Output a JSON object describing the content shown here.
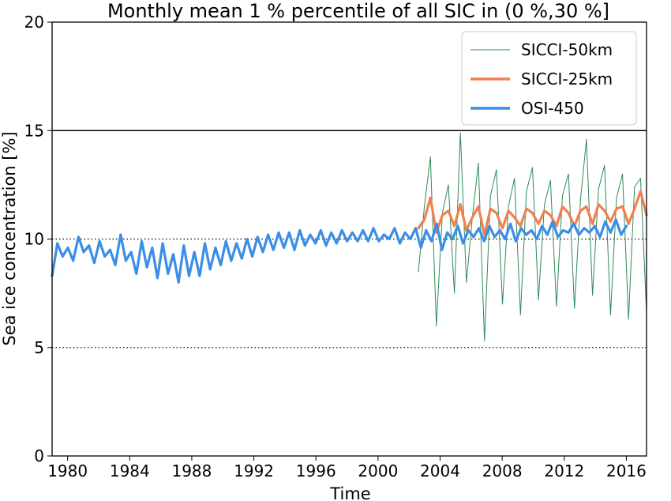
{
  "chart_data": {
    "type": "line",
    "title": "Monthly mean 1 % percentile of all SIC in (0 %,30 %]",
    "xlabel": "Time",
    "ylabel": "Sea ice concentration [%]",
    "xlim": [
      1979.0,
      2017.3
    ],
    "ylim": [
      0,
      20
    ],
    "xticks": [
      "1980",
      "1984",
      "1988",
      "1992",
      "1996",
      "2000",
      "2004",
      "2008",
      "2012",
      "2016"
    ],
    "yticks": [
      "0",
      "5",
      "10",
      "15",
      "20"
    ],
    "grid": false,
    "legend_position": "top-right",
    "reference_lines": [
      {
        "y": 15,
        "style": "solid"
      },
      {
        "y": 10,
        "style": "dotted"
      },
      {
        "y": 5,
        "style": "dotted"
      }
    ],
    "series": [
      {
        "name": "SICCI-50km",
        "color": "#2e8b57",
        "style": "thin",
        "x_start": 2002.6,
        "x_end": 2017.3,
        "values": [
          8.5,
          11.5,
          13.8,
          6.0,
          11.2,
          12.5,
          7.5,
          14.9,
          8.0,
          11.0,
          13.5,
          5.3,
          12.0,
          13.2,
          7.0,
          11.5,
          12.8,
          6.5,
          12.2,
          13.3,
          7.2,
          11.6,
          12.7,
          6.9,
          12.0,
          13.0,
          6.8,
          11.8,
          14.6,
          7.4,
          12.3,
          13.4,
          6.5,
          11.9,
          13.0,
          6.3,
          12.4,
          12.8,
          6.6
        ]
      },
      {
        "name": "SICCI-25km",
        "color": "#f08050",
        "style": "thick",
        "x_start": 2002.6,
        "x_end": 2017.3,
        "values": [
          10.5,
          10.9,
          11.9,
          10.3,
          11.1,
          11.3,
          10.6,
          11.6,
          10.4,
          11.0,
          11.5,
          10.2,
          11.4,
          11.2,
          10.5,
          11.3,
          11.0,
          10.6,
          11.4,
          11.2,
          10.7,
          11.3,
          11.1,
          10.6,
          11.5,
          11.2,
          10.6,
          11.3,
          11.5,
          10.7,
          11.6,
          11.3,
          10.8,
          11.4,
          11.5,
          10.7,
          11.4,
          12.2,
          11.1
        ]
      },
      {
        "name": "OSI-450",
        "color": "#3a8ee6",
        "style": "thick",
        "x_start": 1979.0,
        "x_end": 2016.0,
        "values": [
          8.3,
          9.8,
          9.2,
          9.6,
          9.0,
          10.1,
          9.4,
          9.7,
          8.9,
          9.9,
          9.2,
          9.5,
          8.8,
          10.2,
          9.0,
          9.4,
          8.4,
          9.9,
          8.7,
          9.6,
          8.2,
          9.8,
          8.4,
          9.3,
          8.0,
          9.7,
          8.3,
          9.4,
          8.3,
          9.8,
          8.6,
          9.6,
          8.8,
          9.9,
          9.0,
          9.8,
          9.1,
          10.0,
          9.2,
          10.1,
          9.4,
          10.2,
          9.5,
          10.3,
          9.6,
          10.3,
          9.5,
          10.4,
          9.7,
          10.2,
          9.8,
          10.4,
          9.7,
          10.3,
          9.8,
          10.4,
          9.9,
          10.3,
          9.9,
          10.4,
          9.9,
          10.5,
          9.9,
          10.2,
          10.0,
          10.5,
          9.8,
          10.3,
          10.0,
          10.5,
          9.6,
          10.4,
          9.9,
          10.7,
          9.5,
          10.3,
          10.0,
          10.6,
          9.8,
          10.4,
          10.1,
          10.5,
          9.9,
          10.6,
          10.1,
          10.4,
          10.0,
          10.7,
          9.9,
          10.5,
          10.2,
          10.4,
          10.0,
          10.6,
          10.2,
          10.8,
          10.1,
          10.4,
          10.3,
          10.7,
          10.2,
          10.5,
          10.3,
          10.6,
          10.1,
          10.8,
          10.3,
          10.9,
          10.2,
          10.6
        ]
      }
    ]
  }
}
